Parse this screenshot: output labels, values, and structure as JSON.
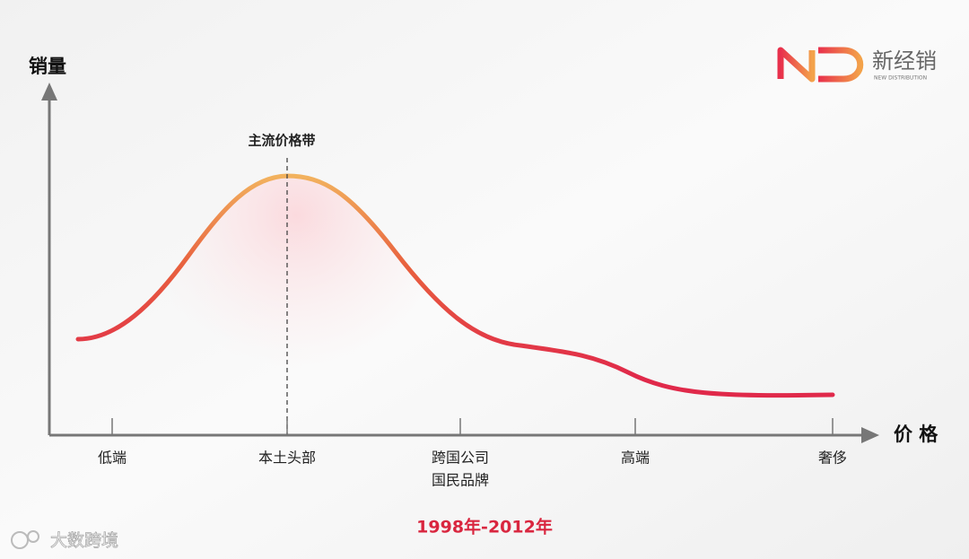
{
  "header": {
    "logo_name": "新经销",
    "logo_subtitle": "NEW DISTRIBUTION"
  },
  "diagram": {
    "y_axis_label": "销量",
    "x_axis_label": "价 格",
    "annotation": "主流价格带",
    "categories": [
      [
        "低端"
      ],
      [
        "本土头部"
      ],
      [
        "跨国公司",
        "国民品牌"
      ],
      [
        "高端"
      ],
      [
        "奢侈"
      ]
    ],
    "period": "1998年-2012年"
  },
  "watermark": "大数跨境"
}
